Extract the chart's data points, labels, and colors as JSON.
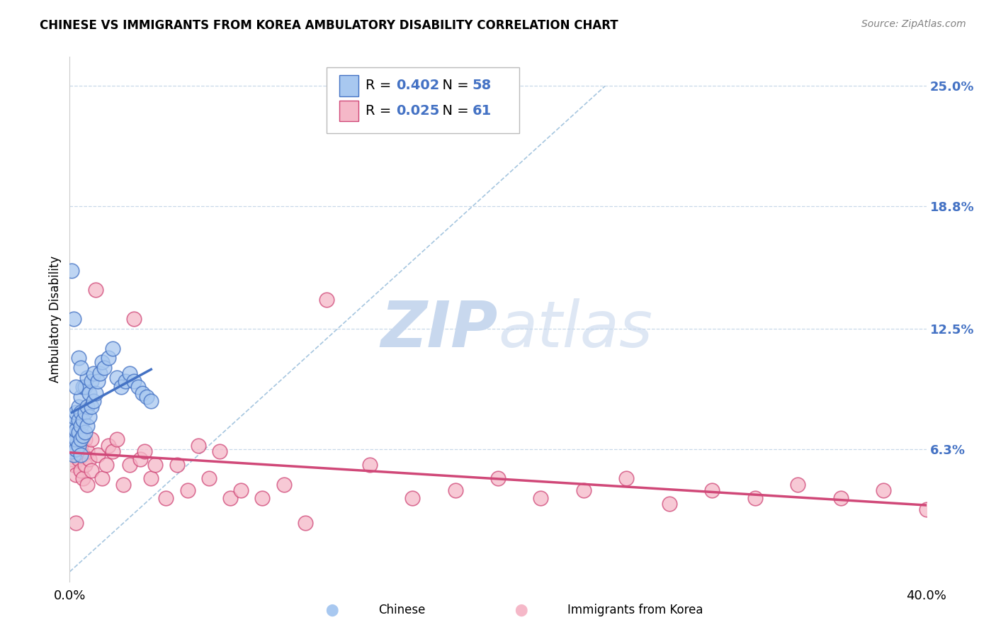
{
  "title": "CHINESE VS IMMIGRANTS FROM KOREA AMBULATORY DISABILITY CORRELATION CHART",
  "source": "Source: ZipAtlas.com",
  "ylabel": "Ambulatory Disability",
  "xlim": [
    0,
    0.4
  ],
  "ylim": [
    -0.005,
    0.265
  ],
  "yticks_right": [
    0.063,
    0.125,
    0.188,
    0.25
  ],
  "yticks_right_labels": [
    "6.3%",
    "12.5%",
    "18.8%",
    "25.0%"
  ],
  "legend_chinese_R": "0.402",
  "legend_chinese_N": "58",
  "legend_korea_R": "0.025",
  "legend_korea_N": "61",
  "blue_fill": "#a8c8f0",
  "blue_edge": "#4472c4",
  "blue_line": "#4472c4",
  "pink_fill": "#f5b8c8",
  "pink_edge": "#d04878",
  "pink_line": "#d04878",
  "diagonal_color": "#90b8d8",
  "grid_color": "#c8d8e8",
  "watermark_color": "#c8d8ee",
  "chinese_x": [
    0.001,
    0.001,
    0.001,
    0.001,
    0.002,
    0.002,
    0.002,
    0.002,
    0.002,
    0.003,
    0.003,
    0.003,
    0.003,
    0.004,
    0.004,
    0.004,
    0.004,
    0.005,
    0.005,
    0.005,
    0.005,
    0.005,
    0.006,
    0.006,
    0.006,
    0.007,
    0.007,
    0.007,
    0.008,
    0.008,
    0.008,
    0.009,
    0.009,
    0.01,
    0.01,
    0.011,
    0.011,
    0.012,
    0.013,
    0.014,
    0.015,
    0.016,
    0.018,
    0.02,
    0.022,
    0.024,
    0.026,
    0.028,
    0.03,
    0.032,
    0.034,
    0.036,
    0.038,
    0.001,
    0.002,
    0.003,
    0.004,
    0.005
  ],
  "chinese_y": [
    0.062,
    0.068,
    0.072,
    0.078,
    0.06,
    0.065,
    0.07,
    0.074,
    0.08,
    0.063,
    0.068,
    0.073,
    0.082,
    0.065,
    0.072,
    0.078,
    0.085,
    0.06,
    0.068,
    0.075,
    0.082,
    0.09,
    0.07,
    0.078,
    0.095,
    0.072,
    0.082,
    0.095,
    0.075,
    0.085,
    0.1,
    0.08,
    0.092,
    0.085,
    0.098,
    0.088,
    0.102,
    0.092,
    0.098,
    0.102,
    0.108,
    0.105,
    0.11,
    0.115,
    0.1,
    0.095,
    0.098,
    0.102,
    0.098,
    0.095,
    0.092,
    0.09,
    0.088,
    0.155,
    0.13,
    0.095,
    0.11,
    0.105
  ],
  "korea_x": [
    0.001,
    0.001,
    0.001,
    0.002,
    0.002,
    0.003,
    0.003,
    0.004,
    0.004,
    0.005,
    0.005,
    0.006,
    0.006,
    0.007,
    0.007,
    0.008,
    0.008,
    0.009,
    0.01,
    0.01,
    0.012,
    0.013,
    0.015,
    0.017,
    0.018,
    0.02,
    0.022,
    0.025,
    0.028,
    0.03,
    0.033,
    0.035,
    0.038,
    0.04,
    0.045,
    0.05,
    0.055,
    0.06,
    0.065,
    0.07,
    0.075,
    0.08,
    0.09,
    0.1,
    0.11,
    0.12,
    0.14,
    0.16,
    0.18,
    0.2,
    0.22,
    0.24,
    0.26,
    0.28,
    0.3,
    0.32,
    0.34,
    0.36,
    0.38,
    0.4,
    0.003
  ],
  "korea_y": [
    0.058,
    0.065,
    0.072,
    0.055,
    0.068,
    0.05,
    0.062,
    0.058,
    0.07,
    0.052,
    0.065,
    0.06,
    0.048,
    0.055,
    0.068,
    0.045,
    0.062,
    0.058,
    0.052,
    0.068,
    0.145,
    0.06,
    0.048,
    0.055,
    0.065,
    0.062,
    0.068,
    0.045,
    0.055,
    0.13,
    0.058,
    0.062,
    0.048,
    0.055,
    0.038,
    0.055,
    0.042,
    0.065,
    0.048,
    0.062,
    0.038,
    0.042,
    0.038,
    0.045,
    0.025,
    0.14,
    0.055,
    0.038,
    0.042,
    0.048,
    0.038,
    0.042,
    0.048,
    0.035,
    0.042,
    0.038,
    0.045,
    0.038,
    0.042,
    0.032,
    0.025
  ]
}
